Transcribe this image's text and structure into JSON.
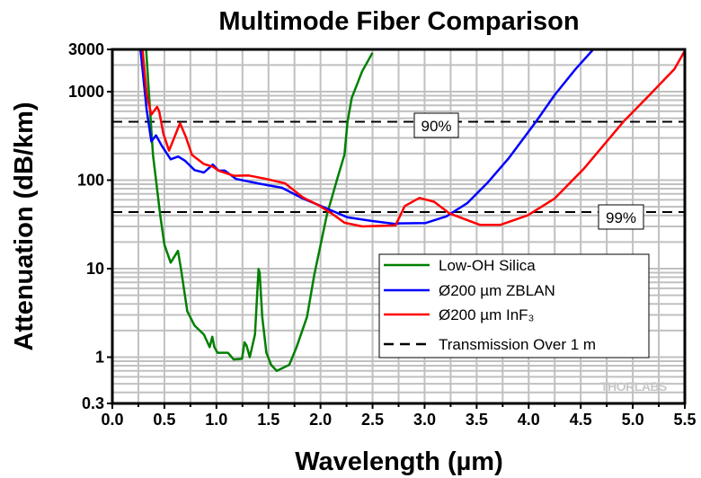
{
  "chart_data": {
    "type": "line",
    "title": "Multimode Fiber Comparison",
    "xlabel": "Wavelength (µm)",
    "ylabel": "Attenuation (dB/km)",
    "xlim": [
      0.0,
      5.5
    ],
    "ylim": [
      0.3,
      3000
    ],
    "yscale": "log",
    "grid": true,
    "legend_position": "bottom-right",
    "xticks": [
      "0.0",
      "0.5",
      "1.0",
      "1.5",
      "2.0",
      "2.5",
      "3.0",
      "3.5",
      "4.0",
      "4.5",
      "5.0",
      "5.5"
    ],
    "yticks": [
      {
        "value": 3000,
        "label": "3000"
      },
      {
        "value": 1000,
        "label": "1000"
      },
      {
        "value": 100,
        "label": "100"
      },
      {
        "value": 10,
        "label": "10"
      },
      {
        "value": 1,
        "label": "1"
      },
      {
        "value": 0.3,
        "label": "0.3"
      }
    ],
    "series": [
      {
        "name": "Low-OH Silica",
        "color": "#008000",
        "x": [
          0.325,
          0.36,
          0.39,
          0.46,
          0.5,
          0.56,
          0.63,
          0.66,
          0.72,
          0.79,
          0.88,
          0.935,
          0.96,
          0.98,
          1.01,
          1.11,
          1.166,
          1.246,
          1.27,
          1.29,
          1.32,
          1.37,
          1.405,
          1.415,
          1.44,
          1.48,
          1.525,
          1.58,
          1.7,
          1.77,
          1.87,
          1.94,
          2.06,
          2.16,
          2.23,
          2.26,
          2.3,
          2.4,
          2.5
        ],
        "y": [
          3000,
          674,
          194,
          40,
          18.7,
          11.7,
          15.9,
          9.9,
          3.3,
          2.27,
          1.8,
          1.3,
          1.7,
          1.3,
          1.12,
          1.12,
          0.94,
          0.96,
          1.47,
          1.35,
          1.0,
          1.8,
          9.9,
          9.0,
          2.85,
          1.12,
          0.82,
          0.7,
          0.82,
          1.3,
          2.85,
          8.5,
          40,
          103,
          194,
          458,
          850,
          1700,
          2750
        ]
      },
      {
        "name": "Ø200 µm ZBLAN",
        "color": "#0000FF",
        "x": [
          0.27,
          0.33,
          0.375,
          0.42,
          0.475,
          0.56,
          0.633,
          0.7,
          0.79,
          0.88,
          0.965,
          1.02,
          1.08,
          1.19,
          1.4,
          1.63,
          1.83,
          1.97,
          2.14,
          2.26,
          2.49,
          2.72,
          2.75,
          3.01,
          3.21,
          3.41,
          3.61,
          3.81,
          4.07,
          4.25,
          4.45,
          4.62
        ],
        "y": [
          3000,
          620,
          274,
          320,
          245,
          172,
          185,
          165,
          130,
          122,
          150,
          128,
          128,
          103,
          92,
          82,
          62,
          53,
          43.6,
          38,
          34.6,
          32,
          32.5,
          32.8,
          39,
          55,
          95,
          178,
          458,
          920,
          1800,
          3000
        ]
      },
      {
        "name": "Ø200 µm InF₃",
        "color": "#FF0000",
        "x": [
          0.29,
          0.33,
          0.375,
          0.43,
          0.45,
          0.49,
          0.545,
          0.65,
          0.705,
          0.765,
          0.88,
          0.965,
          1.02,
          1.166,
          1.31,
          1.48,
          1.66,
          1.83,
          1.97,
          2.12,
          2.23,
          2.4,
          2.72,
          2.81,
          2.95,
          3.09,
          3.24,
          3.53,
          3.73,
          3.99,
          4.25,
          4.53,
          4.91,
          5.15,
          5.4,
          5.5
        ],
        "y": [
          3000,
          920,
          550,
          674,
          600,
          334,
          216,
          440,
          310,
          193,
          152,
          142,
          128,
          112,
          113,
          103,
          92,
          64,
          53,
          41,
          33,
          30,
          30.8,
          51,
          63,
          57,
          42,
          31.3,
          31.3,
          40,
          62,
          135,
          458,
          890,
          1800,
          2900
        ]
      }
    ],
    "reference_lines": [
      {
        "name": "Transmission Over 1 m",
        "color": "#000000",
        "style": "dashed",
        "y": 457.6,
        "label": "90%"
      },
      {
        "y": 43.6,
        "label": "99%"
      }
    ],
    "legend": [
      "Low-OH Silica",
      "Ø200 µm ZBLAN",
      "Ø200 µm InF₃",
      "Transmission Over 1 m"
    ],
    "watermark": "THORLABS"
  }
}
